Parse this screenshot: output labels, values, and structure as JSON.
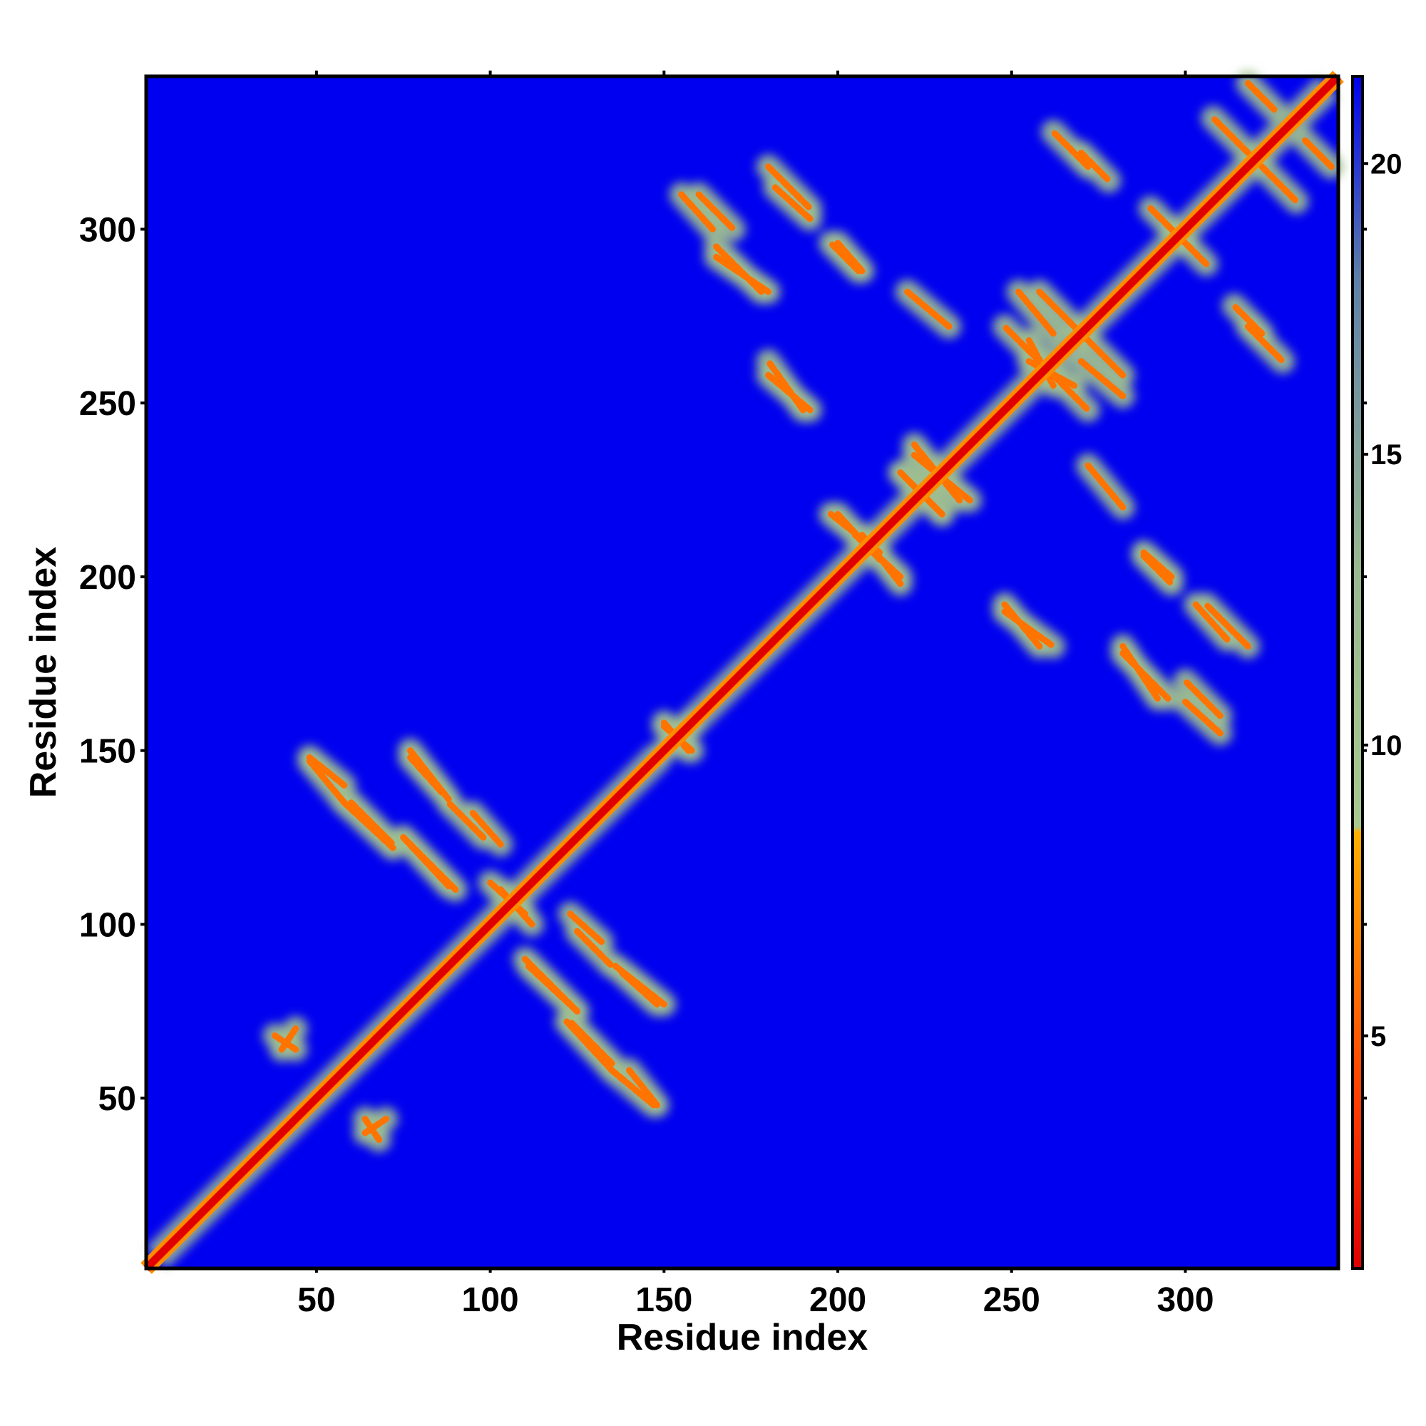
{
  "chart_data": {
    "type": "heatmap",
    "title": "",
    "xlabel": "Residue index",
    "ylabel": "Residue index",
    "xlim": [
      1,
      344
    ],
    "ylim": [
      1,
      344
    ],
    "x_ticks": [
      {
        "value": 50,
        "label": "50"
      },
      {
        "value": 100,
        "label": "100"
      },
      {
        "value": 150,
        "label": "150"
      },
      {
        "value": 200,
        "label": "200"
      },
      {
        "value": 250,
        "label": "250"
      },
      {
        "value": 300,
        "label": "300"
      }
    ],
    "y_ticks": [
      {
        "value": 50,
        "label": "50"
      },
      {
        "value": 100,
        "label": "100"
      },
      {
        "value": 150,
        "label": "150"
      },
      {
        "value": 200,
        "label": "200"
      },
      {
        "value": 250,
        "label": "250"
      },
      {
        "value": 300,
        "label": "300"
      }
    ],
    "colorbar": {
      "range": [
        1,
        21.5
      ],
      "ticks": [
        {
          "value": 5,
          "label": "5"
        },
        {
          "value": 10,
          "label": "10"
        },
        {
          "value": 15,
          "label": "15"
        },
        {
          "value": 20,
          "label": "20"
        }
      ],
      "stops": [
        {
          "value": 1,
          "color": "#e00000"
        },
        {
          "value": 4,
          "color": "#ff4000"
        },
        {
          "value": 7,
          "color": "#ff8c00"
        },
        {
          "value": 8.5,
          "color": "#ffb000"
        },
        {
          "value": 8.6,
          "color": "#a8c890"
        },
        {
          "value": 13,
          "color": "#98b890"
        },
        {
          "value": 18,
          "color": "#6080a8"
        },
        {
          "value": 21.5,
          "color": "#0000ee"
        }
      ]
    },
    "colors": {
      "background": "#0000f0",
      "diagonal": "#e00000",
      "contact_strong": "#ff8c00",
      "contact_weak": "#a0c090"
    },
    "domains": [
      {
        "start": 1,
        "end": 152
      },
      {
        "start": 152,
        "end": 344
      }
    ],
    "diagonal": {
      "from": 1,
      "to": 344,
      "value": 3.8
    },
    "contact_segments": [
      {
        "x1": 48,
        "y1": 148,
        "x2": 58,
        "y2": 140,
        "value": 6
      },
      {
        "x1": 60,
        "y1": 135,
        "x2": 72,
        "y2": 123,
        "value": 6
      },
      {
        "x1": 75,
        "y1": 125,
        "x2": 88,
        "y2": 111,
        "value": 6
      },
      {
        "x1": 77,
        "y1": 150,
        "x2": 88,
        "y2": 136,
        "value": 6
      },
      {
        "x1": 95,
        "y1": 132,
        "x2": 103,
        "y2": 123,
        "value": 6
      },
      {
        "x1": 103,
        "y1": 110,
        "x2": 112,
        "y2": 100,
        "value": 6
      },
      {
        "x1": 125,
        "y1": 98,
        "x2": 135,
        "y2": 88,
        "value": 6
      },
      {
        "x1": 110,
        "y1": 90,
        "x2": 125,
        "y2": 75,
        "value": 6
      },
      {
        "x1": 122,
        "y1": 72,
        "x2": 135,
        "y2": 58,
        "value": 6
      },
      {
        "x1": 138,
        "y1": 86,
        "x2": 148,
        "y2": 77,
        "value": 6
      },
      {
        "x1": 135,
        "y1": 58,
        "x2": 147,
        "y2": 48,
        "value": 6
      },
      {
        "x1": 38,
        "y1": 68,
        "x2": 44,
        "y2": 64,
        "value": 6
      },
      {
        "x1": 64,
        "y1": 40,
        "x2": 70,
        "y2": 44,
        "value": 6
      },
      {
        "x1": 150,
        "y1": 157,
        "x2": 158,
        "y2": 150,
        "value": 6
      },
      {
        "x1": 150,
        "y1": 150,
        "x2": 158,
        "y2": 157,
        "value": 6
      },
      {
        "x1": 160,
        "y1": 310,
        "x2": 170,
        "y2": 300,
        "value": 6
      },
      {
        "x1": 165,
        "y1": 292,
        "x2": 180,
        "y2": 282,
        "value": 6
      },
      {
        "x1": 180,
        "y1": 318,
        "x2": 192,
        "y2": 306,
        "value": 6
      },
      {
        "x1": 180,
        "y1": 258,
        "x2": 192,
        "y2": 248,
        "value": 6
      },
      {
        "x1": 200,
        "y1": 296,
        "x2": 207,
        "y2": 288,
        "value": 6
      },
      {
        "x1": 220,
        "y1": 282,
        "x2": 232,
        "y2": 272,
        "value": 6
      },
      {
        "x1": 200,
        "y1": 218,
        "x2": 212,
        "y2": 205,
        "value": 6
      },
      {
        "x1": 207,
        "y1": 212,
        "x2": 218,
        "y2": 198,
        "value": 6
      },
      {
        "x1": 218,
        "y1": 230,
        "x2": 230,
        "y2": 218,
        "value": 6
      },
      {
        "x1": 222,
        "y1": 238,
        "x2": 235,
        "y2": 222,
        "value": 6
      },
      {
        "x1": 258,
        "y1": 282,
        "x2": 270,
        "y2": 270,
        "value": 6
      },
      {
        "x1": 255,
        "y1": 268,
        "x2": 262,
        "y2": 255,
        "value": 6
      },
      {
        "x1": 262,
        "y1": 258,
        "x2": 272,
        "y2": 248,
        "value": 6
      },
      {
        "x1": 270,
        "y1": 262,
        "x2": 282,
        "y2": 252,
        "value": 6
      },
      {
        "x1": 248,
        "y1": 190,
        "x2": 262,
        "y2": 180,
        "value": 6
      },
      {
        "x1": 288,
        "y1": 206,
        "x2": 296,
        "y2": 198,
        "value": 6
      },
      {
        "x1": 303,
        "y1": 192,
        "x2": 312,
        "y2": 182,
        "value": 6
      },
      {
        "x1": 282,
        "y1": 178,
        "x2": 295,
        "y2": 165,
        "value": 6
      },
      {
        "x1": 300,
        "y1": 164,
        "x2": 310,
        "y2": 155,
        "value": 6
      },
      {
        "x1": 318,
        "y1": 342,
        "x2": 326,
        "y2": 334,
        "value": 6
      },
      {
        "x1": 322,
        "y1": 318,
        "x2": 332,
        "y2": 308,
        "value": 6
      },
      {
        "x1": 290,
        "y1": 306,
        "x2": 300,
        "y2": 296,
        "value": 6
      },
      {
        "x1": 270,
        "y1": 322,
        "x2": 278,
        "y2": 314,
        "value": 6
      },
      {
        "x1": 318,
        "y1": 272,
        "x2": 328,
        "y2": 262,
        "value": 6
      }
    ]
  }
}
